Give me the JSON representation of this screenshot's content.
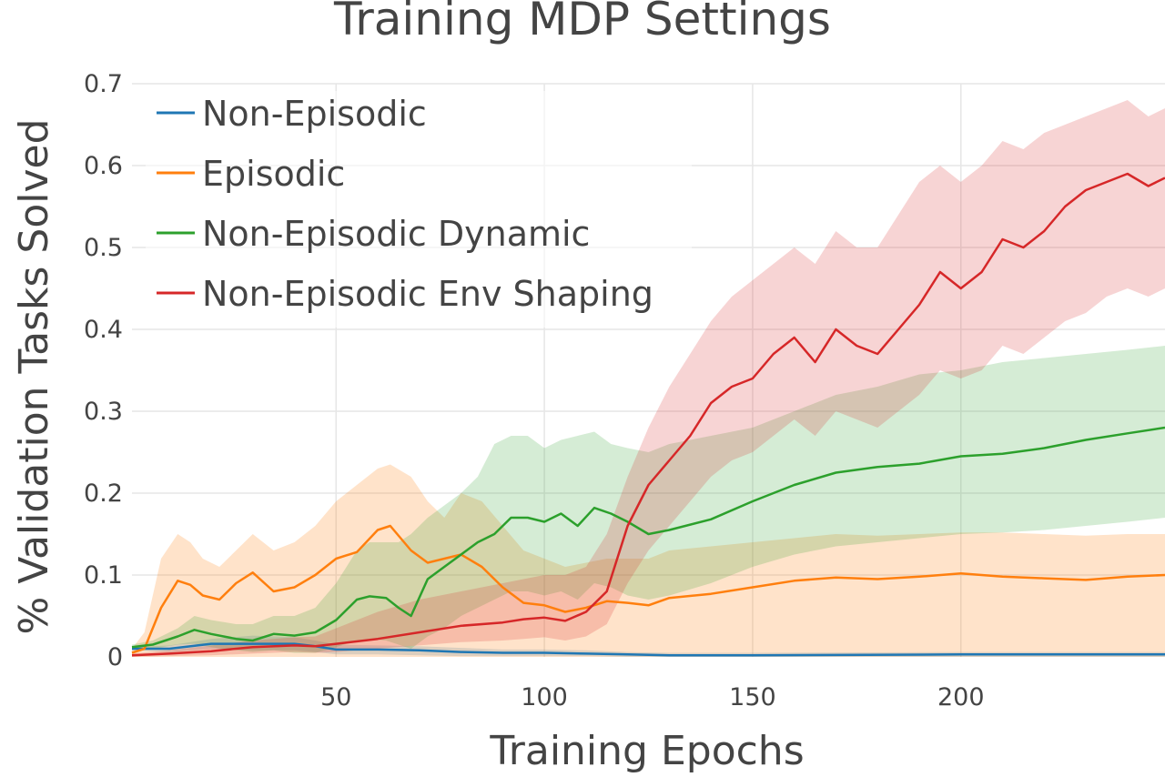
{
  "chart_data": {
    "type": "line",
    "title": "Training MDP Settings",
    "xlabel": "Training Epochs",
    "ylabel": "% Validation Tasks Solved",
    "xlim": [
      1,
      249
    ],
    "ylim": [
      0,
      0.7
    ],
    "x_ticks": [
      50,
      100,
      150,
      200
    ],
    "y_ticks": [
      0,
      0.1,
      0.2,
      0.3,
      0.4,
      0.5,
      0.6,
      0.7
    ],
    "x_tick_labels": [
      "50",
      "100",
      "150",
      "200"
    ],
    "y_tick_labels": [
      "0",
      "0.1",
      "0.2",
      "0.3",
      "0.4",
      "0.5",
      "0.6",
      "0.7"
    ],
    "grid": true,
    "legend_position": "top-left",
    "series": [
      {
        "name": "Non-Episodic",
        "color": "#1f77b4",
        "band_opacity": 0.2,
        "x": [
          1,
          10,
          20,
          30,
          40,
          45,
          50,
          60,
          70,
          80,
          90,
          100,
          110,
          120,
          130,
          150,
          200,
          249
        ],
        "mean": [
          0.01,
          0.01,
          0.016,
          0.016,
          0.016,
          0.013,
          0.009,
          0.009,
          0.008,
          0.006,
          0.005,
          0.005,
          0.004,
          0.003,
          0.002,
          0.002,
          0.003,
          0.003
        ],
        "upper": [
          0.012,
          0.014,
          0.022,
          0.026,
          0.024,
          0.02,
          0.015,
          0.014,
          0.013,
          0.011,
          0.009,
          0.009,
          0.008,
          0.006,
          0.005,
          0.005,
          0.006,
          0.006
        ],
        "lower": [
          0.008,
          0.006,
          0.01,
          0.008,
          0.008,
          0.006,
          0.003,
          0.003,
          0.002,
          0.001,
          0.001,
          0.001,
          0.001,
          0.0,
          0.0,
          0.0,
          0.0,
          0.0
        ]
      },
      {
        "name": "Episodic",
        "color": "#ff7f0e",
        "band_opacity": 0.22,
        "x": [
          1,
          4,
          8,
          12,
          15,
          18,
          22,
          26,
          30,
          35,
          40,
          45,
          50,
          55,
          60,
          63,
          68,
          72,
          76,
          80,
          85,
          90,
          95,
          100,
          105,
          110,
          115,
          120,
          125,
          130,
          140,
          150,
          160,
          170,
          180,
          190,
          200,
          210,
          220,
          230,
          240,
          249
        ],
        "mean": [
          0.005,
          0.01,
          0.06,
          0.093,
          0.088,
          0.075,
          0.07,
          0.09,
          0.103,
          0.08,
          0.085,
          0.1,
          0.12,
          0.128,
          0.155,
          0.16,
          0.13,
          0.115,
          0.12,
          0.125,
          0.11,
          0.085,
          0.066,
          0.063,
          0.055,
          0.06,
          0.068,
          0.066,
          0.063,
          0.072,
          0.077,
          0.085,
          0.093,
          0.097,
          0.095,
          0.098,
          0.102,
          0.098,
          0.096,
          0.094,
          0.098,
          0.1
        ],
        "upper": [
          0.01,
          0.03,
          0.12,
          0.15,
          0.14,
          0.12,
          0.11,
          0.13,
          0.15,
          0.13,
          0.14,
          0.16,
          0.19,
          0.21,
          0.23,
          0.235,
          0.22,
          0.19,
          0.17,
          0.2,
          0.19,
          0.16,
          0.13,
          0.12,
          0.11,
          0.115,
          0.12,
          0.12,
          0.12,
          0.13,
          0.135,
          0.14,
          0.145,
          0.15,
          0.148,
          0.15,
          0.152,
          0.152,
          0.15,
          0.148,
          0.15,
          0.15
        ]
      },
      {
        "name": "Non-Episodic Dynamic",
        "color": "#2ca02c",
        "band_opacity": 0.2,
        "x": [
          1,
          6,
          12,
          16,
          20,
          26,
          30,
          35,
          40,
          45,
          50,
          55,
          58,
          62,
          65,
          68,
          72,
          76,
          80,
          84,
          88,
          92,
          96,
          100,
          104,
          108,
          112,
          116,
          120,
          125,
          130,
          140,
          150,
          160,
          170,
          180,
          190,
          200,
          210,
          220,
          230,
          240,
          249
        ],
        "mean": [
          0.012,
          0.015,
          0.025,
          0.033,
          0.028,
          0.022,
          0.02,
          0.028,
          0.026,
          0.03,
          0.045,
          0.07,
          0.074,
          0.072,
          0.06,
          0.05,
          0.095,
          0.11,
          0.125,
          0.14,
          0.15,
          0.17,
          0.17,
          0.165,
          0.175,
          0.16,
          0.182,
          0.175,
          0.165,
          0.15,
          0.155,
          0.168,
          0.19,
          0.21,
          0.225,
          0.232,
          0.236,
          0.245,
          0.248,
          0.255,
          0.265,
          0.273,
          0.28
        ],
        "upper": [
          0.015,
          0.02,
          0.035,
          0.05,
          0.045,
          0.04,
          0.04,
          0.05,
          0.05,
          0.06,
          0.09,
          0.13,
          0.14,
          0.14,
          0.14,
          0.15,
          0.17,
          0.185,
          0.2,
          0.22,
          0.26,
          0.27,
          0.27,
          0.255,
          0.265,
          0.27,
          0.275,
          0.26,
          0.255,
          0.25,
          0.26,
          0.27,
          0.28,
          0.3,
          0.32,
          0.33,
          0.345,
          0.35,
          0.36,
          0.365,
          0.37,
          0.375,
          0.38
        ],
        "lower": [
          0.009,
          0.01,
          0.015,
          0.016,
          0.012,
          0.008,
          0.006,
          0.008,
          0.005,
          0.005,
          0.012,
          0.02,
          0.022,
          0.02,
          0.015,
          0.01,
          0.025,
          0.035,
          0.05,
          0.06,
          0.07,
          0.08,
          0.08,
          0.075,
          0.08,
          0.07,
          0.09,
          0.085,
          0.075,
          0.07,
          0.075,
          0.09,
          0.11,
          0.125,
          0.135,
          0.14,
          0.145,
          0.15,
          0.152,
          0.155,
          0.16,
          0.165,
          0.17
        ]
      },
      {
        "name": "Non-Episodic Env Shaping",
        "color": "#d62728",
        "band_opacity": 0.2,
        "x": [
          1,
          10,
          20,
          30,
          40,
          45,
          50,
          60,
          70,
          80,
          90,
          95,
          100,
          105,
          110,
          115,
          120,
          125,
          130,
          135,
          140,
          145,
          150,
          155,
          160,
          165,
          170,
          175,
          180,
          185,
          190,
          195,
          200,
          205,
          210,
          215,
          220,
          225,
          230,
          235,
          240,
          245,
          249
        ],
        "mean": [
          0.002,
          0.004,
          0.007,
          0.012,
          0.014,
          0.013,
          0.016,
          0.022,
          0.03,
          0.038,
          0.042,
          0.046,
          0.048,
          0.044,
          0.055,
          0.08,
          0.16,
          0.21,
          0.24,
          0.27,
          0.31,
          0.33,
          0.34,
          0.37,
          0.39,
          0.36,
          0.4,
          0.38,
          0.37,
          0.4,
          0.43,
          0.47,
          0.45,
          0.47,
          0.51,
          0.5,
          0.52,
          0.55,
          0.57,
          0.58,
          0.59,
          0.575,
          0.585
        ],
        "upper": [
          0.004,
          0.008,
          0.014,
          0.02,
          0.024,
          0.025,
          0.035,
          0.055,
          0.07,
          0.08,
          0.09,
          0.095,
          0.1,
          0.1,
          0.11,
          0.15,
          0.22,
          0.28,
          0.33,
          0.37,
          0.41,
          0.44,
          0.46,
          0.48,
          0.5,
          0.48,
          0.52,
          0.5,
          0.5,
          0.54,
          0.58,
          0.6,
          0.58,
          0.6,
          0.63,
          0.62,
          0.64,
          0.65,
          0.66,
          0.67,
          0.68,
          0.66,
          0.67
        ],
        "lower": [
          0.0,
          0.001,
          0.002,
          0.004,
          0.006,
          0.005,
          0.006,
          0.01,
          0.014,
          0.018,
          0.02,
          0.022,
          0.024,
          0.02,
          0.025,
          0.04,
          0.09,
          0.13,
          0.16,
          0.19,
          0.22,
          0.24,
          0.25,
          0.27,
          0.29,
          0.27,
          0.3,
          0.29,
          0.28,
          0.3,
          0.32,
          0.35,
          0.34,
          0.35,
          0.38,
          0.37,
          0.39,
          0.41,
          0.42,
          0.44,
          0.45,
          0.44,
          0.45
        ]
      }
    ]
  }
}
